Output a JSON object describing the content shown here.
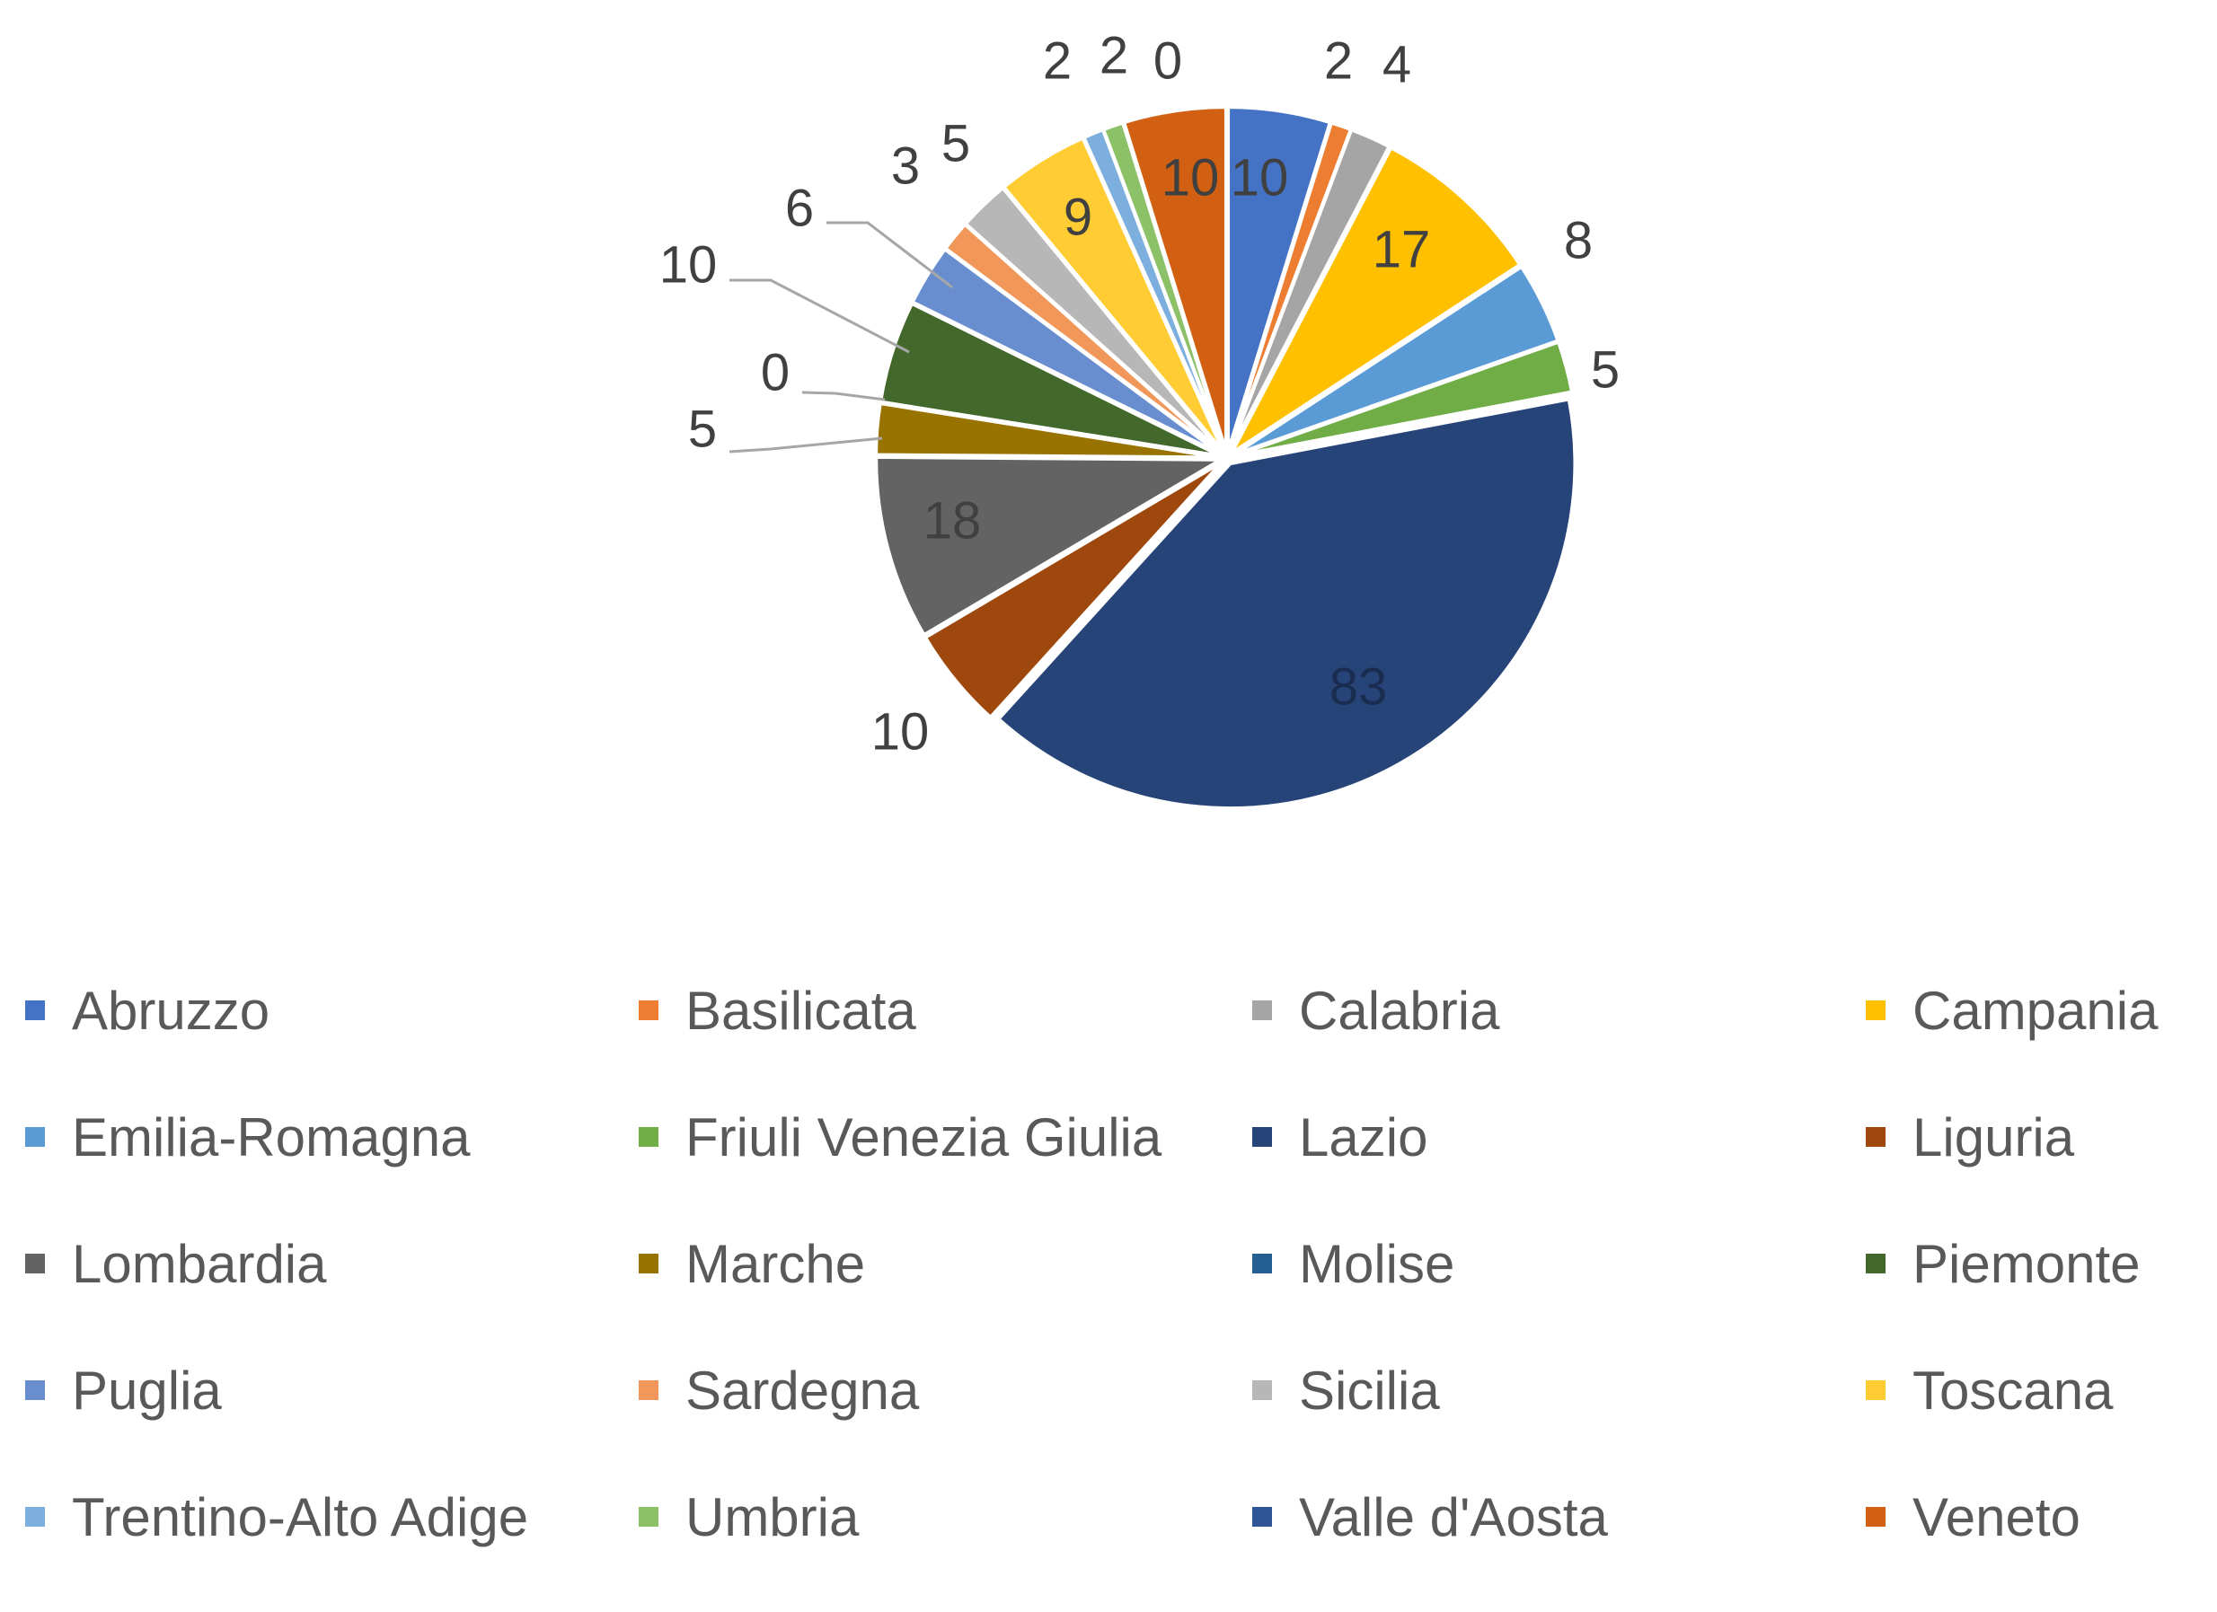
{
  "chart_data": {
    "type": "pie",
    "title": "",
    "legend_position": "bottom",
    "slices": [
      {
        "name": "Abruzzo",
        "value": 10,
        "color": "#4472C4"
      },
      {
        "name": "Basilicata",
        "value": 2,
        "color": "#ED7D31"
      },
      {
        "name": "Calabria",
        "value": 4,
        "color": "#A5A5A5"
      },
      {
        "name": "Campania",
        "value": 17,
        "color": "#FFC000"
      },
      {
        "name": "Emilia-Romagna",
        "value": 8,
        "color": "#5B9BD5"
      },
      {
        "name": "Friuli Venezia Giulia",
        "value": 5,
        "color": "#70AD47"
      },
      {
        "name": "Lazio",
        "value": 83,
        "color": "#264478"
      },
      {
        "name": "Liguria",
        "value": 10,
        "color": "#9E480E"
      },
      {
        "name": "Lombardia",
        "value": 18,
        "color": "#636363"
      },
      {
        "name": "Marche",
        "value": 5,
        "color": "#997300"
      },
      {
        "name": "Molise",
        "value": 0,
        "color": "#255E91"
      },
      {
        "name": "Piemonte",
        "value": 10,
        "color": "#43682B"
      },
      {
        "name": "Puglia",
        "value": 6,
        "color": "#698ED0"
      },
      {
        "name": "Sardegna",
        "value": 3,
        "color": "#F1975A"
      },
      {
        "name": "Sicilia",
        "value": 5,
        "color": "#B7B7B7"
      },
      {
        "name": "Toscana",
        "value": 9,
        "color": "#FFCD33"
      },
      {
        "name": "Trentino-Alto Adige",
        "value": 2,
        "color": "#7CAFDD"
      },
      {
        "name": "Umbria",
        "value": 2,
        "color": "#8CC168"
      },
      {
        "name": "Valle d'Aosta",
        "value": 0,
        "color": "#2F5597"
      },
      {
        "name": "Veneto",
        "value": 10,
        "color": "#D26012"
      }
    ]
  }
}
